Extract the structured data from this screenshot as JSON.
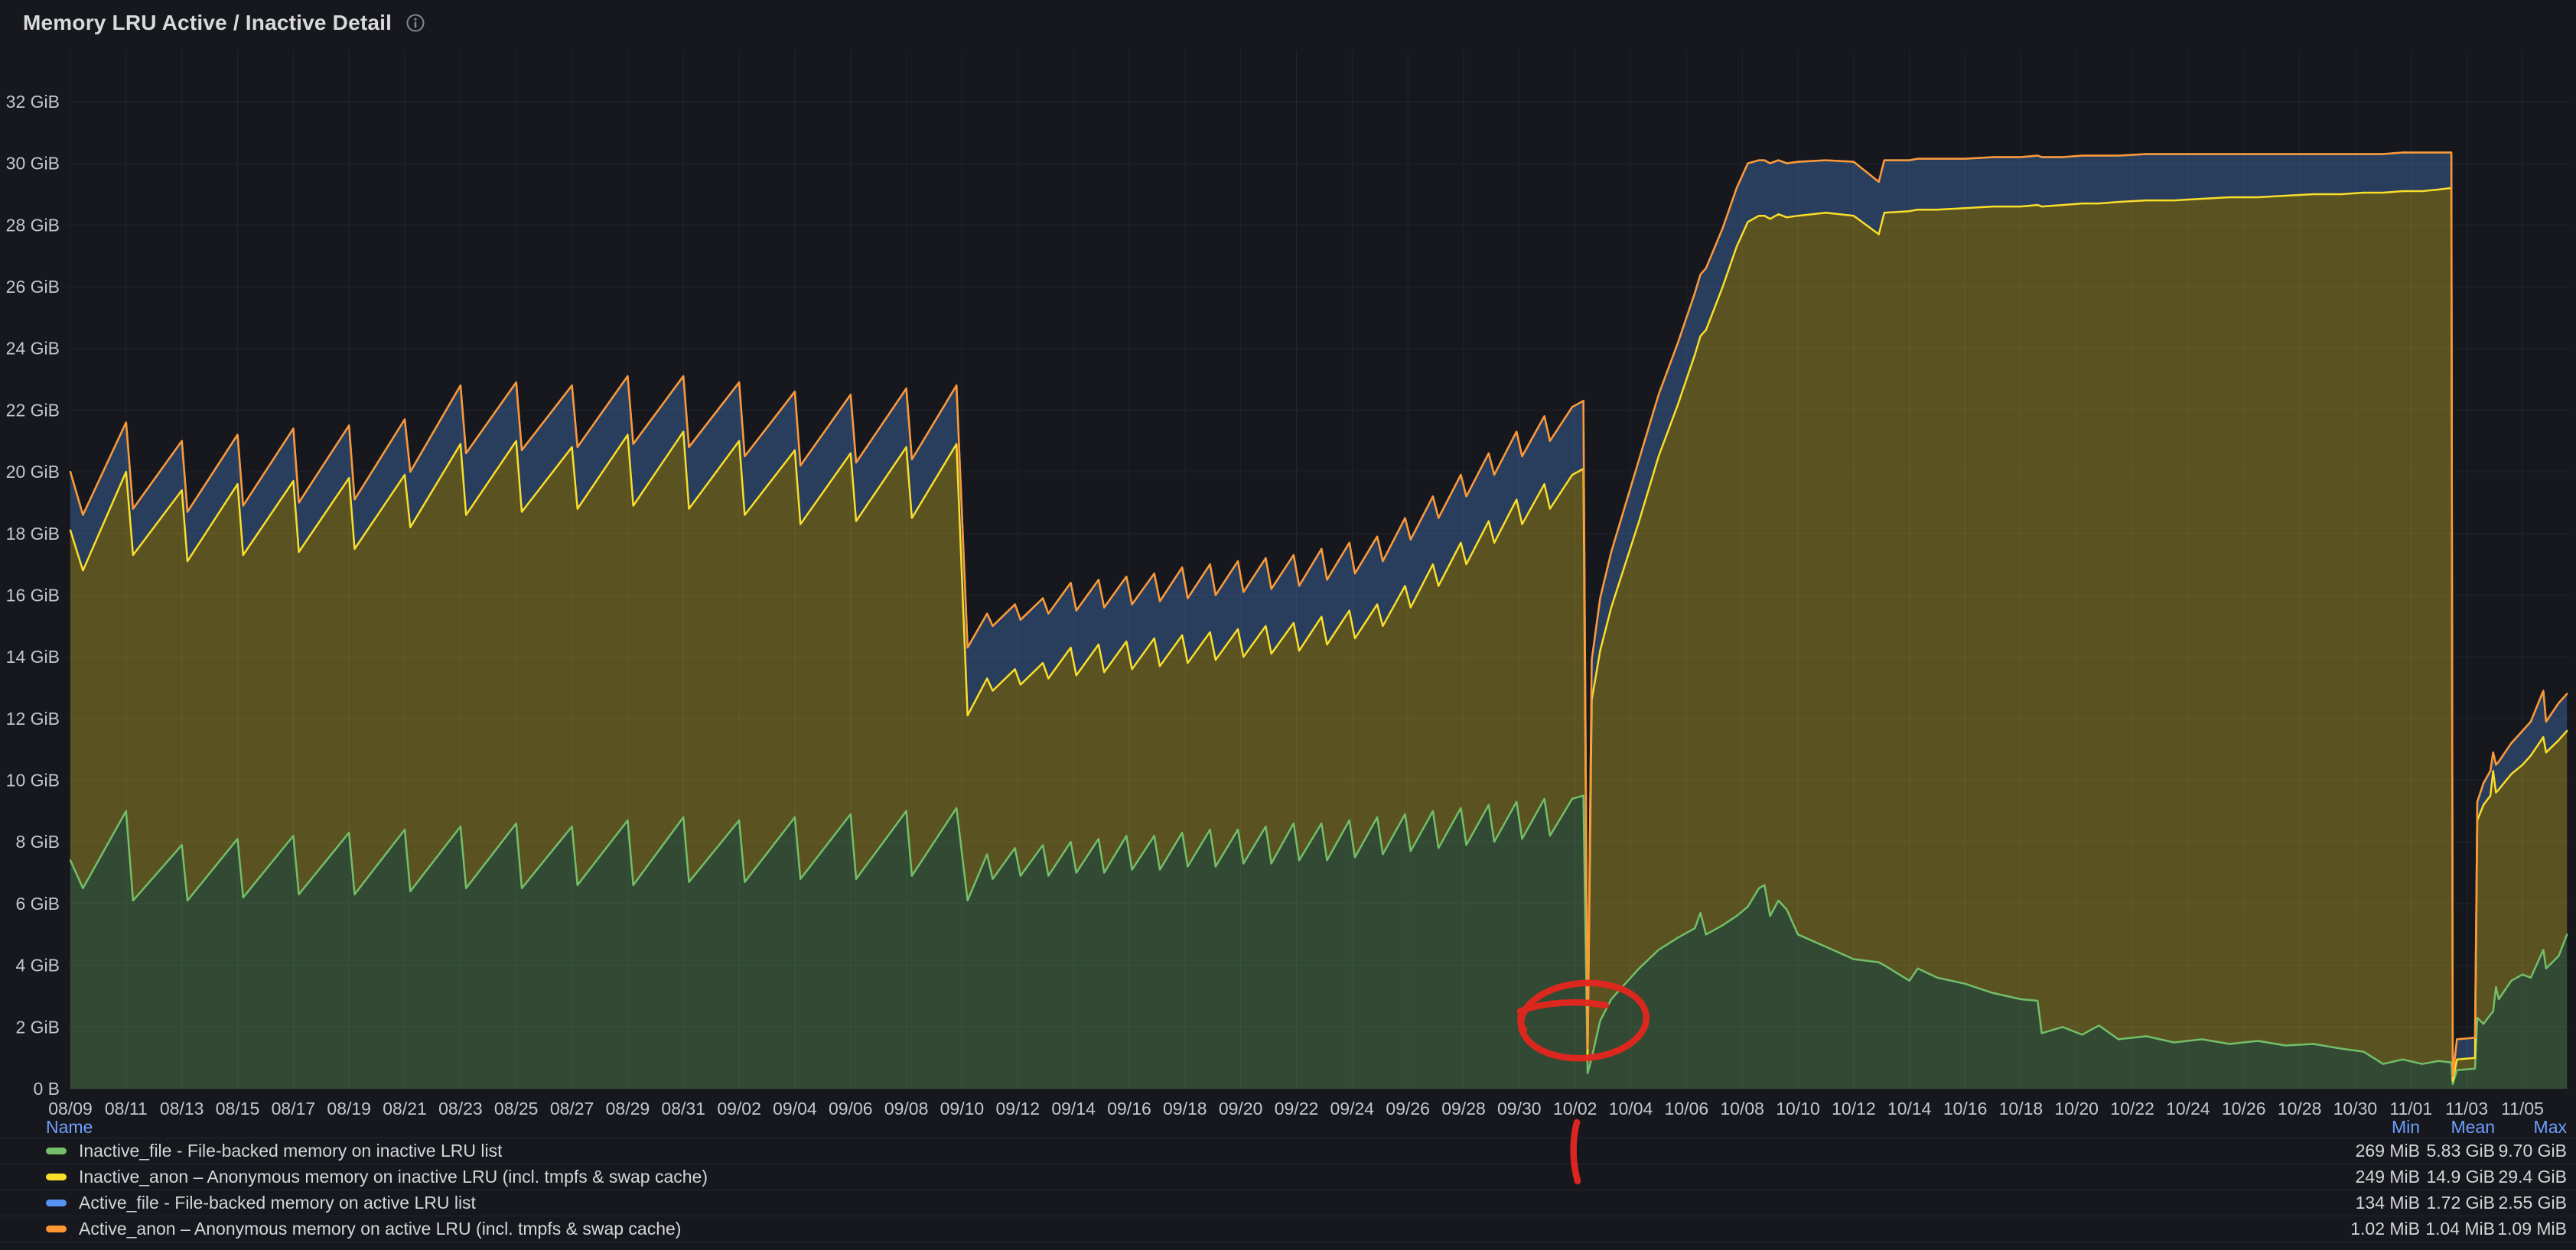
{
  "panel": {
    "title": "Memory LRU Active / Inactive Detail",
    "info_icon": "info-circle-icon"
  },
  "colors": {
    "background": "#16181d",
    "grid": "rgba(204,204,220,0.07)",
    "tick_text": "#c4c6ce",
    "title_text": "#d9dadd",
    "legend_header_blue": "#6e9fff",
    "legend_text": "#d4d5d9",
    "annotation_red": "#e3261f",
    "green": "#73BF69",
    "yellow": "#FADE2A",
    "blue": "#5794F2",
    "orange": "#FF9830"
  },
  "legend": {
    "columns": [
      "Name",
      "Min",
      "Mean",
      "Max"
    ],
    "rows": [
      {
        "label": "Inactive_file - File-backed memory on inactive LRU list",
        "color": "#73BF69",
        "min": "269 MiB",
        "mean": "5.83 GiB",
        "max": "9.70 GiB"
      },
      {
        "label": "Inactive_anon – Anonymous memory on inactive LRU (incl. tmpfs & swap cache)",
        "color": "#FADE2A",
        "min": "249 MiB",
        "mean": "14.9 GiB",
        "max": "29.4 GiB"
      },
      {
        "label": "Active_file - File-backed memory on active LRU list",
        "color": "#5794F2",
        "min": "134 MiB",
        "mean": "1.72 GiB",
        "max": "2.55 GiB"
      },
      {
        "label": "Active_anon – Anonymous memory on active LRU (incl. tmpfs & swap cache)",
        "color": "#FF9830",
        "min": "1.02 MiB",
        "mean": "1.04 MiB",
        "max": "1.09 MiB"
      }
    ]
  },
  "annotation": {
    "type": "hand-drawn red ellipse with vertical tick below axis",
    "color": "#e3261f",
    "circled_x_label": "10/02",
    "circled_value_gib": 2,
    "meaning": "highlights Inactive_file drop to near zero at 10/02"
  },
  "chart_data": {
    "type": "area",
    "stacked": true,
    "legend_position": "bottom-table",
    "grid": true,
    "unit": "GiB",
    "xlabel": "",
    "ylabel": "",
    "x_axis": {
      "tick_step_days": 2,
      "start_date": "08/09",
      "end_date": "11/05",
      "tick_labels": [
        "08/09",
        "08/11",
        "08/13",
        "08/15",
        "08/17",
        "08/19",
        "08/21",
        "08/23",
        "08/25",
        "08/27",
        "08/29",
        "08/31",
        "09/02",
        "09/04",
        "09/06",
        "09/08",
        "09/10",
        "09/12",
        "09/14",
        "09/16",
        "09/18",
        "09/20",
        "09/22",
        "09/24",
        "09/26",
        "09/28",
        "09/30",
        "10/02",
        "10/04",
        "10/06",
        "10/08",
        "10/10",
        "10/12",
        "10/14",
        "10/16",
        "10/18",
        "10/20",
        "10/22",
        "10/24",
        "10/26",
        "10/28",
        "10/30",
        "11/01",
        "11/03",
        "11/05"
      ]
    },
    "y_axis": {
      "min_gib": 0,
      "max_gib": 33.6,
      "tick_values": [
        0,
        2,
        4,
        6,
        8,
        10,
        12,
        14,
        16,
        18,
        20,
        22,
        24,
        26,
        28,
        30,
        32
      ],
      "tick_labels": [
        "0 B",
        "2 GiB",
        "4 GiB",
        "6 GiB",
        "8 GiB",
        "10 GiB",
        "12 GiB",
        "14 GiB",
        "16 GiB",
        "18 GiB",
        "20 GiB",
        "22 GiB",
        "24 GiB",
        "26 GiB",
        "28 GiB",
        "30 GiB",
        "32 GiB"
      ]
    },
    "x_days": [
      0,
      0.45,
      2,
      2.25,
      4,
      4.2,
      6,
      6.2,
      8,
      8.2,
      10,
      10.2,
      12,
      12.2,
      14,
      14.2,
      16,
      16.2,
      18,
      18.2,
      20,
      20.2,
      22,
      22.2,
      24,
      24.2,
      26,
      26.2,
      28,
      28.2,
      30,
      30.2,
      31.8,
      32.2,
      32.9,
      33.1,
      33.9,
      34.1,
      34.9,
      35.1,
      35.9,
      36.1,
      36.9,
      37.1,
      37.9,
      38.1,
      38.9,
      39.1,
      39.9,
      40.1,
      40.9,
      41.1,
      41.9,
      42.1,
      42.9,
      43.1,
      43.9,
      44.1,
      44.9,
      45.1,
      45.9,
      46.1,
      46.9,
      47.1,
      47.9,
      48.1,
      48.9,
      49.1,
      49.9,
      50.1,
      50.9,
      51.1,
      51.9,
      52.1,
      52.9,
      53.1,
      53.9,
      54.3,
      54.45,
      54.6,
      54.9,
      55.3,
      55.8,
      56.3,
      57.0,
      57.7,
      58.3,
      58.5,
      58.7,
      59.3,
      59.8,
      60.2,
      60.6,
      60.8,
      61.0,
      61.3,
      61.6,
      62.0,
      63.0,
      64.0,
      64.9,
      65.1,
      66.0,
      66.3,
      67.0,
      68.0,
      69.0,
      70.0,
      70.6,
      70.75,
      71.5,
      72.2,
      72.8,
      73.5,
      74.5,
      75.5,
      76.5,
      77.5,
      78.5,
      79.5,
      80.5,
      81.5,
      82.3,
      83.0,
      83.7,
      84.4,
      85.0,
      85.45,
      85.5,
      85.65,
      86.3,
      86.38,
      86.6,
      86.85,
      86.95,
      87.05,
      87.15,
      87.6,
      88.0,
      88.3,
      88.75,
      88.85,
      89.3,
      89.6
    ],
    "series": [
      {
        "name": "Inactive_file",
        "color": "#73BF69",
        "values": [
          7.4,
          6.5,
          9.0,
          6.1,
          7.9,
          6.1,
          8.1,
          6.2,
          8.2,
          6.3,
          8.3,
          6.3,
          8.4,
          6.4,
          8.5,
          6.5,
          8.6,
          6.5,
          8.5,
          6.6,
          8.7,
          6.6,
          8.8,
          6.7,
          8.7,
          6.7,
          8.8,
          6.8,
          8.9,
          6.8,
          9.0,
          6.9,
          9.1,
          6.1,
          7.6,
          6.8,
          7.8,
          6.9,
          7.9,
          6.9,
          8.0,
          7.0,
          8.1,
          7.0,
          8.2,
          7.1,
          8.2,
          7.1,
          8.3,
          7.2,
          8.4,
          7.2,
          8.4,
          7.3,
          8.5,
          7.3,
          8.6,
          7.4,
          8.6,
          7.4,
          8.7,
          7.5,
          8.8,
          7.6,
          8.9,
          7.7,
          9.0,
          7.8,
          9.1,
          7.9,
          9.2,
          8.0,
          9.3,
          8.1,
          9.4,
          8.2,
          9.4,
          9.5,
          0.5,
          1.0,
          2.2,
          2.9,
          3.4,
          3.9,
          4.5,
          4.9,
          5.2,
          5.7,
          5.0,
          5.3,
          5.6,
          5.9,
          6.5,
          6.6,
          5.6,
          6.1,
          5.8,
          5.0,
          4.6,
          4.2,
          4.1,
          4.0,
          3.5,
          3.9,
          3.6,
          3.4,
          3.1,
          2.9,
          2.85,
          1.8,
          2.0,
          1.75,
          2.05,
          1.6,
          1.7,
          1.5,
          1.6,
          1.45,
          1.55,
          1.4,
          1.45,
          1.3,
          1.2,
          0.8,
          0.95,
          0.8,
          0.9,
          0.85,
          0.15,
          0.6,
          0.65,
          2.3,
          2.1,
          2.4,
          2.5,
          3.3,
          2.9,
          3.5,
          3.7,
          3.6,
          4.5,
          3.9,
          4.3,
          5.0
        ]
      },
      {
        "name": "Inactive_anon",
        "color": "#FADE2A",
        "values": [
          10.7,
          10.3,
          11.0,
          11.2,
          11.5,
          11.0,
          11.5,
          11.1,
          11.5,
          11.1,
          11.5,
          11.2,
          11.5,
          11.8,
          12.4,
          12.1,
          12.4,
          12.2,
          12.3,
          12.2,
          12.5,
          12.3,
          12.5,
          12.1,
          12.3,
          11.9,
          11.9,
          11.5,
          11.7,
          11.6,
          11.8,
          11.6,
          11.8,
          6.0,
          5.7,
          6.1,
          5.8,
          6.2,
          5.9,
          6.4,
          6.3,
          6.4,
          6.3,
          6.5,
          6.3,
          6.5,
          6.4,
          6.6,
          6.4,
          6.6,
          6.4,
          6.7,
          6.5,
          6.7,
          6.5,
          6.8,
          6.5,
          6.8,
          6.7,
          7.0,
          6.8,
          7.1,
          6.9,
          7.4,
          7.4,
          7.9,
          8.0,
          8.5,
          8.6,
          9.1,
          9.2,
          9.7,
          9.8,
          10.2,
          10.2,
          10.6,
          10.5,
          10.6,
          0.4,
          11.6,
          12.0,
          12.7,
          13.6,
          14.5,
          16.0,
          17.3,
          18.6,
          18.7,
          19.6,
          20.7,
          21.7,
          22.2,
          21.8,
          21.7,
          22.6,
          22.25,
          22.45,
          23.3,
          23.8,
          24.1,
          23.6,
          24.4,
          24.95,
          24.6,
          24.9,
          25.15,
          25.5,
          25.7,
          25.8,
          26.8,
          26.65,
          26.95,
          26.65,
          27.15,
          27.1,
          27.3,
          27.25,
          27.45,
          27.35,
          27.55,
          27.55,
          27.7,
          27.85,
          28.25,
          28.15,
          28.3,
          28.25,
          28.35,
          0.1,
          0.35,
          0.35,
          6.4,
          7.1,
          7.1,
          7.8,
          6.3,
          6.8,
          6.7,
          6.8,
          7.2,
          6.9,
          7.0,
          7.0,
          6.6
        ]
      },
      {
        "name": "Active_file",
        "color": "#5794F2",
        "values": [
          1.9,
          1.8,
          1.6,
          1.5,
          1.6,
          1.6,
          1.6,
          1.6,
          1.7,
          1.6,
          1.7,
          1.6,
          1.8,
          1.8,
          1.9,
          2.0,
          1.9,
          2.0,
          2.0,
          2.0,
          1.9,
          2.0,
          1.8,
          2.0,
          1.9,
          1.9,
          1.9,
          1.9,
          1.9,
          1.9,
          1.9,
          1.9,
          1.9,
          2.2,
          2.1,
          2.1,
          2.1,
          2.1,
          2.1,
          2.1,
          2.1,
          2.1,
          2.1,
          2.1,
          2.1,
          2.1,
          2.1,
          2.1,
          2.2,
          2.1,
          2.2,
          2.1,
          2.2,
          2.1,
          2.2,
          2.1,
          2.2,
          2.1,
          2.2,
          2.1,
          2.2,
          2.1,
          2.2,
          2.1,
          2.2,
          2.2,
          2.2,
          2.2,
          2.2,
          2.2,
          2.2,
          2.2,
          2.2,
          2.2,
          2.2,
          2.2,
          2.2,
          2.2,
          0.4,
          1.3,
          1.7,
          1.8,
          1.9,
          2.0,
          2.0,
          2.0,
          2.0,
          2.0,
          2.0,
          1.9,
          1.9,
          1.9,
          1.8,
          1.8,
          1.8,
          1.75,
          1.75,
          1.75,
          1.7,
          1.75,
          1.7,
          1.7,
          1.65,
          1.65,
          1.65,
          1.6,
          1.6,
          1.6,
          1.6,
          1.6,
          1.55,
          1.55,
          1.55,
          1.5,
          1.5,
          1.5,
          1.45,
          1.4,
          1.4,
          1.35,
          1.3,
          1.3,
          1.25,
          1.25,
          1.25,
          1.25,
          1.2,
          1.15,
          0.15,
          0.65,
          0.65,
          0.6,
          0.7,
          0.8,
          0.6,
          0.9,
          0.9,
          1.0,
          1.1,
          1.1,
          1.5,
          1.0,
          1.2,
          1.2
        ]
      },
      {
        "name": "Active_anon",
        "color": "#FF9830",
        "constant_value": 0.001
      }
    ]
  }
}
